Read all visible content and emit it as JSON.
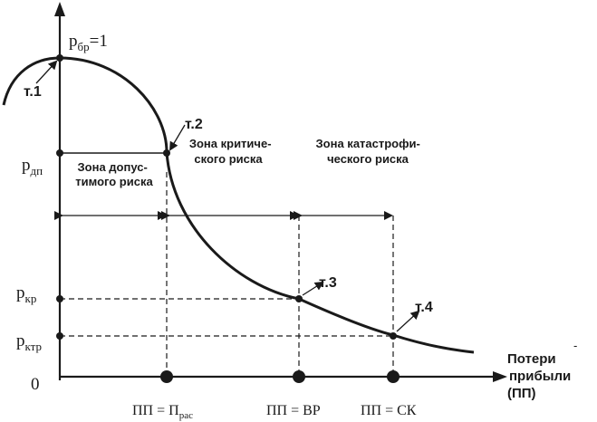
{
  "y_axis": {
    "top_label": {
      "main": "p",
      "sub": "бр",
      "suffix": "=1"
    },
    "labels": [
      {
        "id": "pdp",
        "main": "p",
        "sub": "дп"
      },
      {
        "id": "pkr",
        "main": "p",
        "sub": "кр"
      },
      {
        "id": "pktr",
        "main": "p",
        "sub": "ктр"
      },
      {
        "id": "zero",
        "main": "0",
        "sub": ""
      }
    ]
  },
  "x_axis": {
    "title_lines": [
      "Потери",
      "прибыли",
      "(ПП)"
    ],
    "mark": "-",
    "labels": [
      {
        "id": "ras",
        "main": "ПП = П",
        "sub": "рас"
      },
      {
        "id": "vr",
        "main": "ПП = ВР",
        "sub": ""
      },
      {
        "id": "sk",
        "main": "ПП = СК",
        "sub": ""
      }
    ]
  },
  "points": [
    "т.1",
    "т.2",
    "т.3",
    "т.4"
  ],
  "zones": [
    {
      "id": "allowable",
      "lines": [
        "Зона допус-",
        "тимого риска"
      ]
    },
    {
      "id": "critical",
      "lines": [
        "Зона критиче-",
        "ского риска"
      ]
    },
    {
      "id": "catastrophic",
      "lines": [
        "Зона  катастрофи-",
        "ческого риска"
      ]
    }
  ]
}
